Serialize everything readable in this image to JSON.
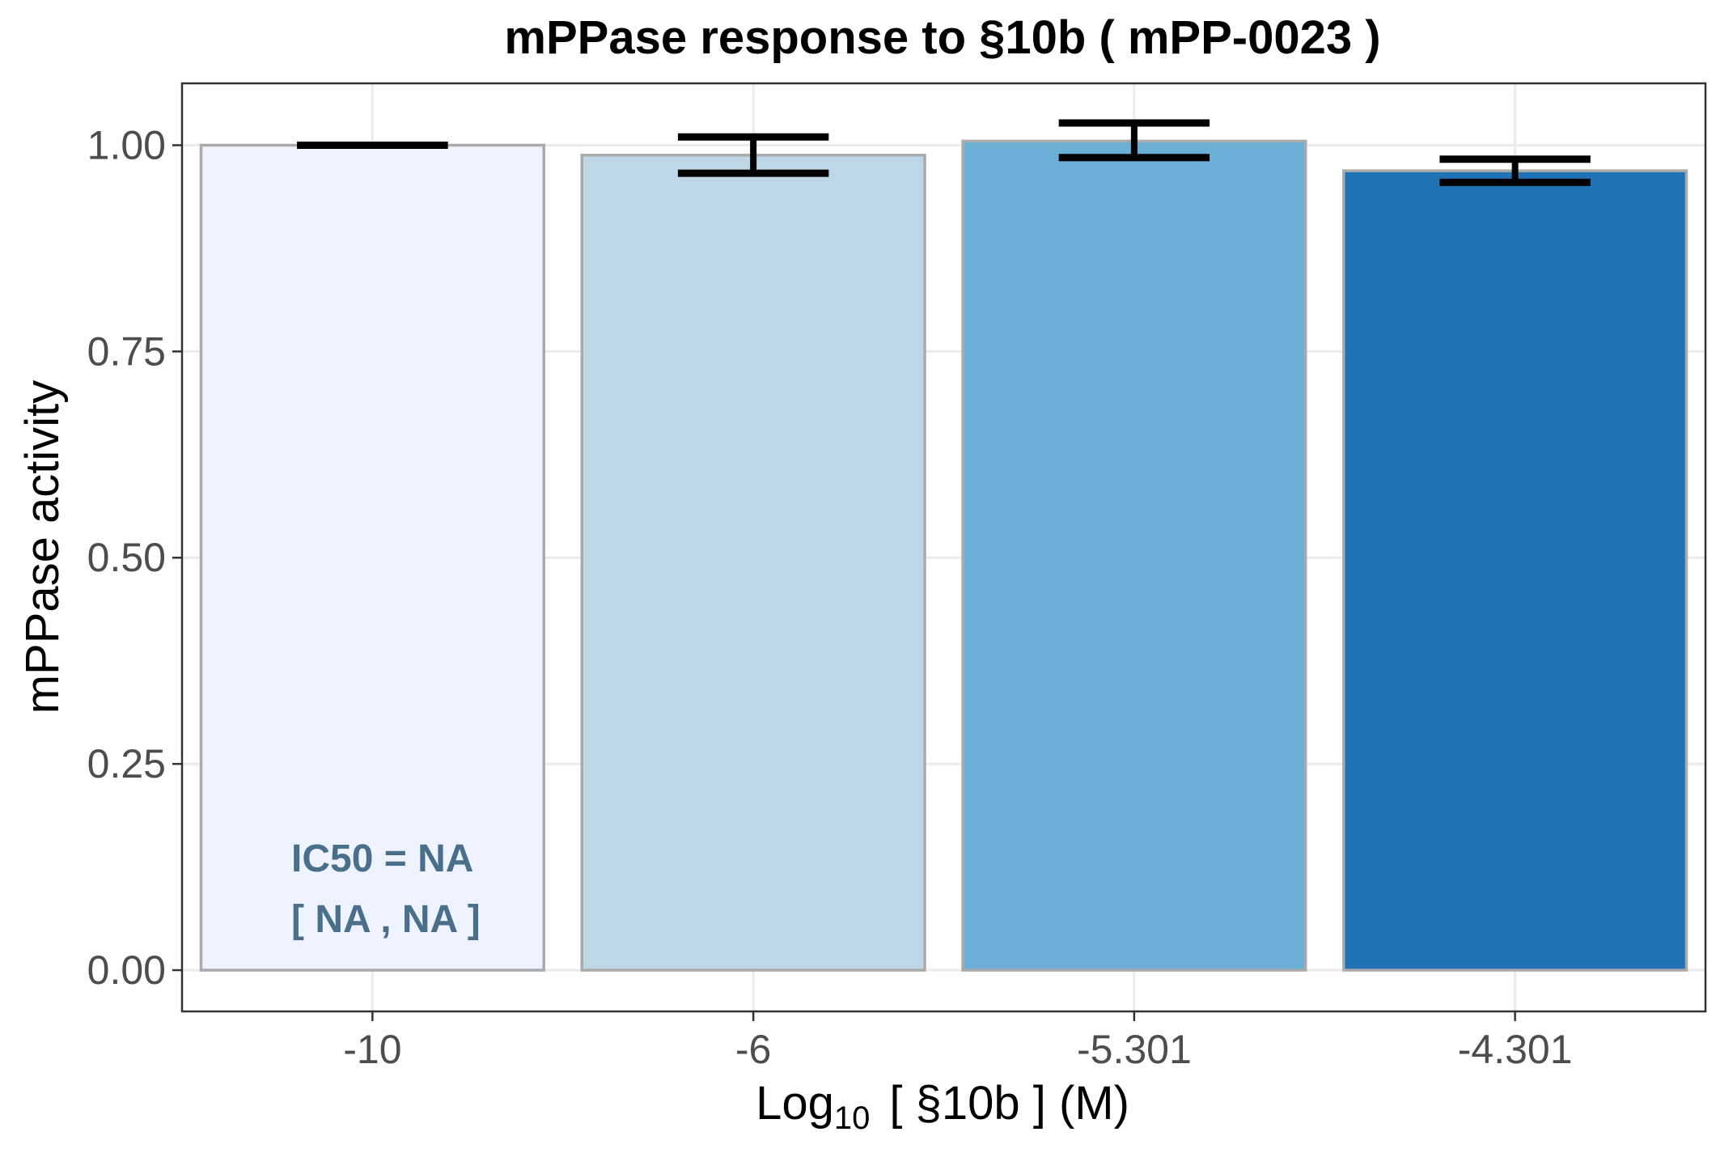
{
  "chart_data": {
    "type": "bar",
    "title": "mPPase response to §10b ( mPP-0023 )",
    "xlabel_main": "Log",
    "xlabel_sub": "10",
    "xlabel_rest": "[ §10b ] (M)",
    "ylabel": "mPPase activity",
    "categories": [
      "-10",
      "-6",
      "-5.301",
      "-4.301"
    ],
    "values": [
      1.0,
      0.988,
      1.005,
      0.969
    ],
    "error_low": [
      1.0,
      0.966,
      0.985,
      0.955
    ],
    "error_high": [
      1.0,
      1.01,
      1.027,
      0.983
    ],
    "colors": [
      "#eff3ff",
      "#bdd7e7",
      "#6baed6",
      "#2171b5"
    ],
    "bar_border_color": "#aaaaaa",
    "ylim": [
      -0.05,
      1.075
    ],
    "yticks": [
      "0.00",
      "0.25",
      "0.50",
      "0.75",
      "1.00"
    ],
    "ytick_values": [
      0,
      0.25,
      0.5,
      0.75,
      1.0
    ],
    "grid": true,
    "annotation": {
      "line1": "IC50 = NA",
      "line2": "[ NA , NA ]",
      "color": "#4a6f8a"
    }
  }
}
